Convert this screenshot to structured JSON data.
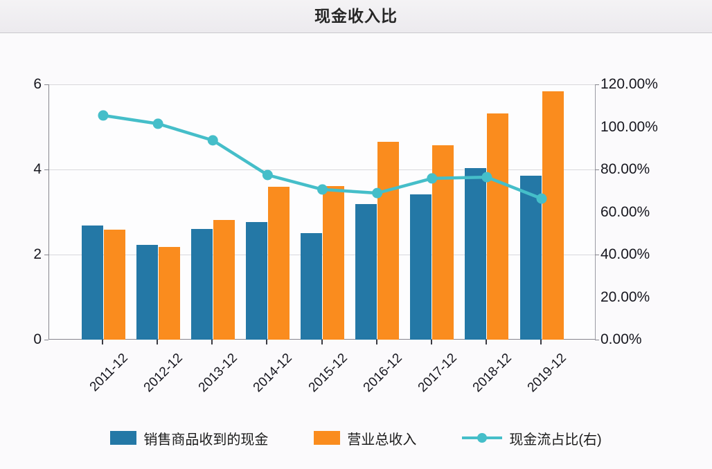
{
  "header": {
    "title": "现金收入比"
  },
  "chart_data": {
    "type": "bar",
    "title": "现金收入比",
    "categories": [
      "2011-12",
      "2012-12",
      "2013-12",
      "2014-12",
      "2015-12",
      "2016-12",
      "2017-12",
      "2018-12",
      "2019-12"
    ],
    "series": [
      {
        "name": "销售商品收到的现金",
        "type": "bar",
        "axis": "left",
        "color": "#2478A6",
        "values": [
          2.68,
          2.23,
          2.6,
          2.76,
          2.5,
          3.19,
          3.41,
          4.03,
          3.85
        ]
      },
      {
        "name": "营业总收入",
        "type": "bar",
        "axis": "left",
        "color": "#FA8C1E",
        "values": [
          2.59,
          2.18,
          2.81,
          3.59,
          3.61,
          4.65,
          4.57,
          5.32,
          5.84
        ]
      },
      {
        "name": "现金流占比(右)",
        "type": "line",
        "axis": "right",
        "color": "#45BEC9",
        "values": [
          105.4,
          101.5,
          93.7,
          77.4,
          70.6,
          68.9,
          75.8,
          76.4,
          66.3
        ]
      }
    ],
    "left_axis": {
      "min": 0,
      "max": 6,
      "tick_labels": [
        "6",
        "4",
        "2",
        "0"
      ]
    },
    "right_axis": {
      "min": 0,
      "max": 120,
      "tick_labels": [
        "120.00%",
        "100.00%",
        "80.00%",
        "60.00%",
        "40.00%",
        "20.00%",
        "0.00%"
      ]
    },
    "grid": true,
    "legend_position": "bottom",
    "colors": {
      "bar_blue": "#2478A6",
      "bar_orange": "#FA8C1E",
      "line_teal": "#45BEC9",
      "grid": "#D8D8DC",
      "axis": "#85858D"
    }
  }
}
